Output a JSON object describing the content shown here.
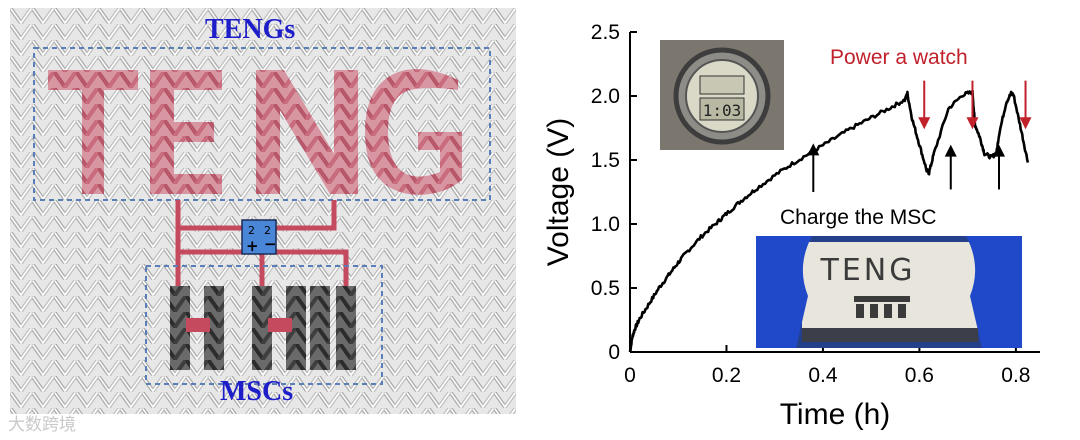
{
  "left_panel": {
    "teng_label": "TENGs",
    "msc_label": "MSCs",
    "textile_text": "TENG",
    "watermark": "大数跨境",
    "colors": {
      "label": "#1d1dc9",
      "letters": "#c64a5e",
      "electrodes": "#3a3a3a",
      "wire": "#c64a5e",
      "box_border": "#5a7fb8"
    }
  },
  "chart_data": {
    "type": "line",
    "xlabel": "Time (h)",
    "ylabel": "Voltage (V)",
    "xlim": [
      0,
      0.85
    ],
    "ylim": [
      0,
      2.5
    ],
    "xticks": [
      0,
      0.2,
      0.4,
      0.6,
      0.8
    ],
    "xtick_labels": [
      "0",
      "0.2",
      "0.4",
      "0.6",
      "0.8"
    ],
    "yticks": [
      0,
      0.5,
      1.0,
      1.5,
      2.0,
      2.5
    ],
    "ytick_labels": [
      "0",
      "0.5",
      "1.0",
      "1.5",
      "2.0",
      "2.5"
    ],
    "series": [
      {
        "color": "#000000",
        "x": [
          0,
          0.005,
          0.01,
          0.02,
          0.04,
          0.06,
          0.08,
          0.1,
          0.12,
          0.15,
          0.18,
          0.2,
          0.23,
          0.26,
          0.3,
          0.34,
          0.38,
          0.42,
          0.46,
          0.5,
          0.54,
          0.57,
          0.575,
          0.585,
          0.6,
          0.615,
          0.62,
          0.63,
          0.66,
          0.69,
          0.71,
          0.715,
          0.725,
          0.735,
          0.75,
          0.76,
          0.765,
          0.78,
          0.79,
          0.795,
          0.81,
          0.825
        ],
        "y": [
          0.0,
          0.12,
          0.18,
          0.26,
          0.38,
          0.5,
          0.6,
          0.7,
          0.79,
          0.91,
          1.01,
          1.08,
          1.18,
          1.27,
          1.38,
          1.48,
          1.57,
          1.66,
          1.75,
          1.83,
          1.91,
          1.97,
          2.02,
          1.82,
          1.62,
          1.42,
          1.4,
          1.55,
          1.9,
          2.01,
          2.03,
          1.78,
          1.68,
          1.55,
          1.52,
          1.56,
          1.7,
          1.95,
          2.02,
          2.01,
          1.75,
          1.48
        ]
      }
    ],
    "annotations": [
      {
        "text": "Power a watch",
        "color": "#c0212b"
      },
      {
        "text": "Charge the MSC",
        "color": "#000000"
      }
    ],
    "down_arrows": [
      {
        "x": 0.61,
        "y_from": 2.12,
        "y_to": 1.74
      },
      {
        "x": 0.71,
        "y_from": 2.12,
        "y_to": 1.74
      },
      {
        "x": 0.82,
        "y_from": 2.12,
        "y_to": 1.74
      }
    ],
    "up_arrows": [
      {
        "x": 0.38,
        "y_from": 1.25,
        "y_to": 1.63
      },
      {
        "x": 0.665,
        "y_from": 1.27,
        "y_to": 1.62
      },
      {
        "x": 0.765,
        "y_from": 1.27,
        "y_to": 1.62
      }
    ],
    "grid": false
  },
  "photos": {
    "watch": {
      "display": "1:03",
      "colors": {
        "body": "#8d8c86",
        "face": "#dad8c6",
        "lcd": "#b9b8a2"
      }
    },
    "fabric": {
      "text": "TENG",
      "colors": {
        "glove": "#1f49c8",
        "fabric": "#e8e6dc",
        "ink": "#3b3b3b"
      }
    }
  }
}
